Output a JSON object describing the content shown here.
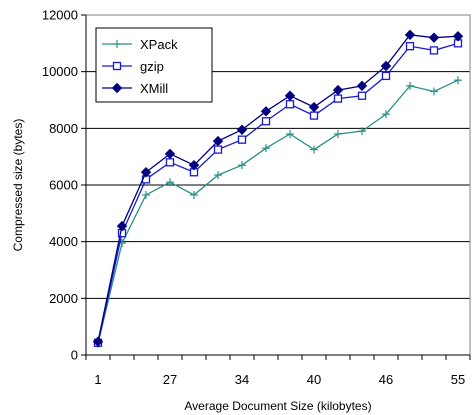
{
  "chart_data": {
    "type": "line",
    "xlabel": "Average Document Size (kilobytes)",
    "ylabel": "Compressed size (bytes)",
    "ylim": [
      0,
      12000
    ],
    "yticks": [
      0,
      2000,
      4000,
      6000,
      8000,
      10000,
      12000
    ],
    "x_tick_labels": [
      "1",
      "27",
      "34",
      "40",
      "46",
      "55"
    ],
    "x_tick_indices": [
      0,
      3,
      6,
      9,
      12,
      15
    ],
    "n_points": 16,
    "grid": "horizontal",
    "legend_position": "top-left",
    "series": [
      {
        "name": "XPack",
        "color": "#2a8f8a",
        "marker": "plus",
        "values": [
          400,
          3950,
          5650,
          6100,
          5650,
          6350,
          6700,
          7300,
          7800,
          7250,
          7800,
          7900,
          8500,
          9500,
          9300,
          9700
        ]
      },
      {
        "name": "gzip",
        "color": "#1a1ad0",
        "marker": "square",
        "values": [
          430,
          4300,
          6200,
          6800,
          6450,
          7250,
          7600,
          8250,
          8850,
          8450,
          9050,
          9150,
          9850,
          10900,
          10750,
          11000
        ]
      },
      {
        "name": "XMill",
        "color": "#000080",
        "marker": "diamond",
        "values": [
          470,
          4550,
          6450,
          7100,
          6700,
          7550,
          7950,
          8600,
          9150,
          8750,
          9350,
          9500,
          10200,
          11300,
          11200,
          11250
        ]
      }
    ]
  }
}
